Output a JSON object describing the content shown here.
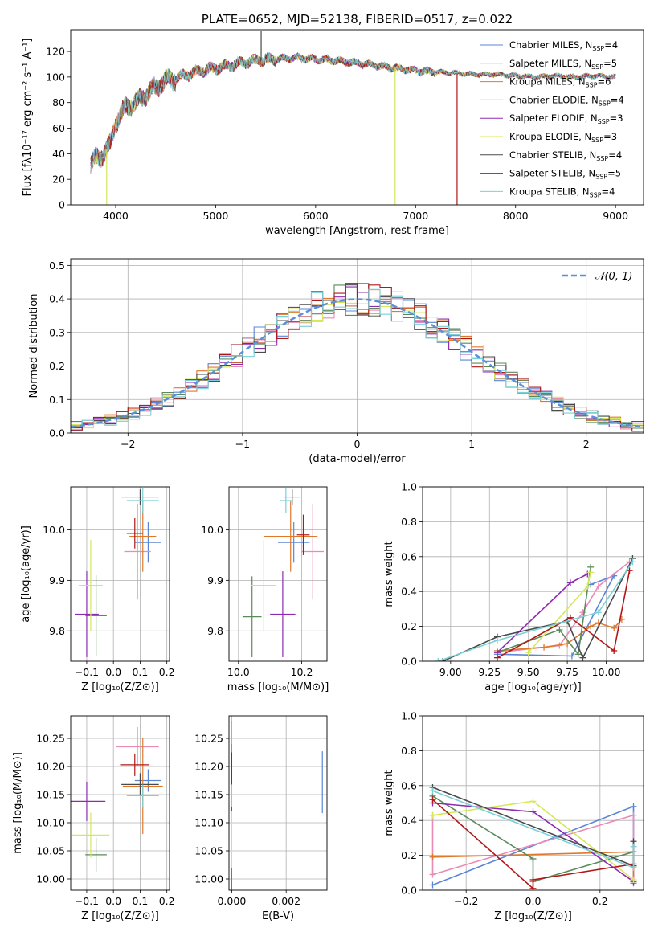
{
  "colors": {
    "Chabrier MILES": "#5b86d6",
    "Salpeter MILES": "#ea8bb4",
    "Kroupa MILES": "#e0782c",
    "Chabrier ELODIE": "#5a8a5a",
    "Salpeter ELODIE": "#8e2ab0",
    "Kroupa ELODIE": "#d4e85a",
    "Chabrier STELIB": "#4a4a4a",
    "Salpeter STELIB": "#b01818",
    "Kroupa STELIB": "#7ad0d8",
    "gaussian": "#5b90d8",
    "grid": "#b0b0b0"
  },
  "chart_data": [
    {
      "id": "spectrum",
      "type": "line",
      "title": "PLATE=0652, MJD=52138, FIBERID=0517, z=0.022",
      "xlabel": "wavelength [Angstrom, rest frame]",
      "ylabel": "Flux [fλ10⁻¹⁷ erg cm⁻² s⁻¹ A⁻¹]",
      "xlim": [
        3550,
        9280
      ],
      "ylim": [
        0,
        137
      ],
      "xticks": [
        4000,
        5000,
        6000,
        7000,
        8000,
        9000
      ],
      "yticks": [
        0,
        20,
        40,
        60,
        80,
        100,
        120
      ],
      "grid": false,
      "legend_position": "top-right",
      "continuum": {
        "x": [
          3750,
          3800,
          3850,
          3900,
          3950,
          4000,
          4100,
          4200,
          4300,
          4400,
          4500,
          4600,
          4800,
          5000,
          5200,
          5400,
          5600,
          5800,
          6000,
          6200,
          6400,
          6600,
          6800,
          7000,
          7200,
          7400,
          7600,
          7800,
          8000,
          8200,
          8400,
          8600,
          8800,
          9000
        ],
        "y": [
          32,
          36,
          38,
          42,
          48,
          65,
          76,
          80,
          86,
          92,
          97,
          99,
          104,
          107,
          110,
          113,
          114,
          115,
          114,
          113,
          111,
          109,
          107,
          105,
          104,
          103,
          102,
          102,
          101,
          100,
          101,
          100,
          101,
          100
        ]
      },
      "dropouts": [
        {
          "series": "Kroupa ELODIE",
          "x": [
            3890,
            3930
          ],
          "y": 0
        },
        {
          "series": "Kroupa ELODIE",
          "x": [
            6790,
            6800
          ],
          "y": 0
        },
        {
          "series": "Salpeter STELIB",
          "x": [
            7410,
            7420
          ],
          "y": 0
        },
        {
          "series": "Chabrier STELIB",
          "x": [
            5450,
            5460
          ],
          "y": 136
        }
      ],
      "legend": [
        {
          "series": "Chabrier MILES",
          "label": "Chabrier MILES, N",
          "sub": "SSP",
          "tail": "=4"
        },
        {
          "series": "Salpeter MILES",
          "label": "Salpeter MILES, N",
          "sub": "SSP",
          "tail": "=5"
        },
        {
          "series": "Kroupa MILES",
          "label": "Kroupa MILES, N",
          "sub": "SSP",
          "tail": "=6"
        },
        {
          "series": "Chabrier ELODIE",
          "label": "Chabrier ELODIE, N",
          "sub": "SSP",
          "tail": "=4"
        },
        {
          "series": "Salpeter ELODIE",
          "label": "Salpeter ELODIE, N",
          "sub": "SSP",
          "tail": "=3"
        },
        {
          "series": "Kroupa ELODIE",
          "label": "Kroupa ELODIE, N",
          "sub": "SSP",
          "tail": "=3"
        },
        {
          "series": "Chabrier STELIB",
          "label": "Chabrier STELIB, N",
          "sub": "SSP",
          "tail": "=4"
        },
        {
          "series": "Salpeter STELIB",
          "label": "Salpeter STELIB, N",
          "sub": "SSP",
          "tail": "=5"
        },
        {
          "series": "Kroupa STELIB",
          "label": "Kroupa STELIB, N",
          "sub": "SSP",
          "tail": "=4"
        }
      ]
    },
    {
      "id": "residuals",
      "type": "line",
      "xlabel": "(data-model)/error",
      "ylabel": "Normed distribution",
      "xlim": [
        -2.5,
        2.5
      ],
      "ylim": [
        0,
        0.52
      ],
      "xticks": [
        -2,
        -1,
        0,
        1,
        2
      ],
      "yticks": [
        0.0,
        0.1,
        0.2,
        0.3,
        0.4,
        0.5
      ],
      "grid": true,
      "bins": {
        "start": -2.5,
        "width": 0.1,
        "count": 50
      },
      "legend": [
        {
          "label": "𝒩(0, 1)",
          "style": "dashed"
        }
      ],
      "legend_position": "top-right"
    },
    {
      "id": "age_vs_Z",
      "type": "scatter",
      "xlabel": "Z [log₁₀(Z/Z⊙)]",
      "ylabel": "age  [log₁₀(age/yr)]",
      "xlim": [
        -0.16,
        0.21
      ],
      "ylim": [
        9.74,
        10.085
      ],
      "xticks": [
        -0.1,
        0.0,
        0.1,
        0.2
      ],
      "yticks": [
        9.8,
        9.9,
        10.0
      ],
      "grid": true,
      "points": [
        {
          "series": "Chabrier MILES",
          "x": 0.13,
          "y": 9.975,
          "xerr": 0.05,
          "yerr": 0.04
        },
        {
          "series": "Salpeter MILES",
          "x": 0.09,
          "y": 9.957,
          "xerr": 0.05,
          "yerr": 0.095
        },
        {
          "series": "Kroupa MILES",
          "x": 0.11,
          "y": 9.987,
          "xerr": 0.05,
          "yerr": 0.07
        },
        {
          "series": "Chabrier ELODIE",
          "x": -0.065,
          "y": 9.83,
          "xerr": 0.04,
          "yerr": 0.08
        },
        {
          "series": "Salpeter ELODIE",
          "x": -0.1,
          "y": 9.833,
          "xerr": 0.045,
          "yerr": 0.085
        },
        {
          "series": "Kroupa ELODIE",
          "x": -0.085,
          "y": 9.89,
          "xerr": 0.045,
          "yerr": 0.09
        },
        {
          "series": "Chabrier STELIB",
          "x": 0.1,
          "y": 10.065,
          "xerr": 0.07,
          "yerr": 0.015
        },
        {
          "series": "Salpeter STELIB",
          "x": 0.08,
          "y": 9.993,
          "xerr": 0.03,
          "yerr": 0.03
        },
        {
          "series": "Kroupa STELIB",
          "x": 0.11,
          "y": 10.058,
          "xerr": 0.06,
          "yerr": 0.025
        }
      ]
    },
    {
      "id": "age_vs_mass",
      "type": "scatter",
      "xlabel": "mass [log₁₀(M/M⊙)]",
      "ylabel": "",
      "xlim": [
        9.97,
        10.28
      ],
      "ylim": [
        9.74,
        10.085
      ],
      "xticks": [
        10.0,
        10.2
      ],
      "yticks": [
        9.8,
        9.9,
        10.0
      ],
      "grid": true,
      "points": [
        {
          "series": "Chabrier MILES",
          "x": 10.175,
          "y": 9.975,
          "xerr": 0.05,
          "yerr": 0.04
        },
        {
          "series": "Salpeter MILES",
          "x": 10.235,
          "y": 9.957,
          "xerr": 0.035,
          "yerr": 0.095
        },
        {
          "series": "Kroupa MILES",
          "x": 10.165,
          "y": 9.987,
          "xerr": 0.085,
          "yerr": 0.07
        },
        {
          "series": "Chabrier ELODIE",
          "x": 10.043,
          "y": 9.828,
          "xerr": 0.03,
          "yerr": 0.08
        },
        {
          "series": "Salpeter ELODIE",
          "x": 10.14,
          "y": 9.833,
          "xerr": 0.04,
          "yerr": 0.085
        },
        {
          "series": "Kroupa ELODIE",
          "x": 10.08,
          "y": 9.89,
          "xerr": 0.04,
          "yerr": 0.09
        },
        {
          "series": "Chabrier STELIB",
          "x": 10.17,
          "y": 10.065,
          "xerr": 0.025,
          "yerr": 0.015
        },
        {
          "series": "Salpeter STELIB",
          "x": 10.205,
          "y": 9.99,
          "xerr": 0.02,
          "yerr": 0.04
        },
        {
          "series": "Kroupa STELIB",
          "x": 10.15,
          "y": 10.058,
          "xerr": 0.02,
          "yerr": 0.025
        }
      ]
    },
    {
      "id": "mass_weight_vs_age",
      "type": "line",
      "xlabel": "age  [log₁₀(age/yr)]",
      "ylabel": "mass weight",
      "xlim": [
        8.82,
        10.24
      ],
      "ylim": [
        0,
        1.0
      ],
      "xticks": [
        9.0,
        9.25,
        9.5,
        9.75,
        10.0
      ],
      "yticks": [
        0.0,
        0.2,
        0.4,
        0.6,
        0.8,
        1.0
      ],
      "grid": true,
      "series": [
        {
          "name": "Chabrier MILES",
          "x": [
            9.3,
            9.78,
            10.05,
            9.9
          ],
          "y": [
            0.04,
            0.03,
            0.49,
            0.44
          ]
        },
        {
          "name": "Salpeter MILES",
          "x": [
            9.3,
            9.7,
            9.85,
            9.95,
            10.15
          ],
          "y": [
            0.05,
            0.09,
            0.28,
            0.43,
            0.57
          ]
        },
        {
          "name": "Kroupa MILES",
          "x": [
            9.3,
            9.6,
            9.75,
            9.9,
            9.95,
            10.05,
            10.1
          ],
          "y": [
            0.06,
            0.08,
            0.1,
            0.2,
            0.22,
            0.19,
            0.24
          ]
        },
        {
          "name": "Chabrier ELODIE",
          "x": [
            9.3,
            9.7,
            9.82,
            9.9
          ],
          "y": [
            0.05,
            0.18,
            0.04,
            0.54
          ]
        },
        {
          "name": "Salpeter ELODIE",
          "x": [
            9.3,
            9.77,
            9.88
          ],
          "y": [
            0.05,
            0.45,
            0.5
          ]
        },
        {
          "name": "Kroupa ELODIE",
          "x": [
            9.5,
            9.88,
            9.9
          ],
          "y": [
            0.05,
            0.43,
            0.51
          ]
        },
        {
          "name": "Chabrier STELIB",
          "x": [
            8.95,
            9.3,
            9.75,
            9.85,
            10.17
          ],
          "y": [
            0.0,
            0.14,
            0.23,
            0.02,
            0.59
          ]
        },
        {
          "name": "Salpeter STELIB",
          "x": [
            9.3,
            9.77,
            10.05,
            10.15
          ],
          "y": [
            0.02,
            0.25,
            0.06,
            0.52
          ]
        },
        {
          "name": "Kroupa STELIB",
          "x": [
            8.92,
            9.3,
            9.95,
            10.17
          ],
          "y": [
            0.0,
            0.12,
            0.28,
            0.57
          ]
        }
      ]
    },
    {
      "id": "mass_vs_Z",
      "type": "scatter",
      "xlabel": "Z [log₁₀(Z/Z⊙)]",
      "ylabel": "mass [log₁₀(M/M⊙)]",
      "xlim": [
        -0.16,
        0.21
      ],
      "ylim": [
        9.98,
        10.29
      ],
      "xticks": [
        -0.1,
        0.0,
        0.1,
        0.2
      ],
      "yticks": [
        10.0,
        10.05,
        10.1,
        10.15,
        10.2,
        10.25
      ],
      "grid": true,
      "points": [
        {
          "series": "Chabrier MILES",
          "x": 0.13,
          "y": 10.175,
          "xerr": 0.05,
          "yerr": 0.02
        },
        {
          "series": "Salpeter MILES",
          "x": 0.09,
          "y": 10.235,
          "xerr": 0.08,
          "yerr": 0.035
        },
        {
          "series": "Kroupa MILES",
          "x": 0.11,
          "y": 10.165,
          "xerr": 0.075,
          "yerr": 0.085
        },
        {
          "series": "Chabrier ELODIE",
          "x": -0.065,
          "y": 10.043,
          "xerr": 0.04,
          "yerr": 0.03
        },
        {
          "series": "Salpeter ELODIE",
          "x": -0.1,
          "y": 10.138,
          "xerr": 0.07,
          "yerr": 0.035
        },
        {
          "series": "Kroupa ELODIE",
          "x": -0.085,
          "y": 10.078,
          "xerr": 0.07,
          "yerr": 0.04
        },
        {
          "series": "Chabrier STELIB",
          "x": 0.1,
          "y": 10.168,
          "xerr": 0.07,
          "yerr": 0.02
        },
        {
          "series": "Salpeter STELIB",
          "x": 0.08,
          "y": 10.203,
          "xerr": 0.055,
          "yerr": 0.02
        },
        {
          "series": "Kroupa STELIB",
          "x": 0.11,
          "y": 10.148,
          "xerr": 0.06,
          "yerr": 0.02
        }
      ]
    },
    {
      "id": "mass_vs_EBV",
      "type": "scatter",
      "xlabel": "E(B-V)",
      "ylabel": "",
      "xlim": [
        -0.0001,
        0.0035
      ],
      "ylim": [
        9.98,
        10.29
      ],
      "xticks": [
        0.0,
        0.002
      ],
      "yticks": [
        10.0,
        10.05,
        10.1,
        10.15,
        10.2,
        10.25
      ],
      "grid": true,
      "points": [
        {
          "series": "Chabrier MILES",
          "x": 0.00333,
          "y": 10.172,
          "xerr": 0.0,
          "yerr": 0.055
        },
        {
          "series": "Salpeter MILES",
          "x": 0.0,
          "y": 10.24,
          "xerr": 0.0,
          "yerr": 0.04
        },
        {
          "series": "Kroupa MILES",
          "x": 0.0,
          "y": 10.16,
          "xerr": 0.0,
          "yerr": 0.08
        },
        {
          "series": "Chabrier ELODIE",
          "x": 0.0,
          "y": 10.0,
          "xerr": 0.0,
          "yerr": 0.04
        },
        {
          "series": "Salpeter ELODIE",
          "x": 0.0,
          "y": 10.14,
          "xerr": 0.0,
          "yerr": 0.035
        },
        {
          "series": "Kroupa ELODIE",
          "x": 0.0,
          "y": 10.07,
          "xerr": 0.0,
          "yerr": 0.05
        },
        {
          "series": "Chabrier STELIB",
          "x": 0.0,
          "y": 10.168,
          "xerr": 0.0,
          "yerr": 0.02
        },
        {
          "series": "Salpeter STELIB",
          "x": 0.0,
          "y": 10.195,
          "xerr": 0.0,
          "yerr": 0.03
        },
        {
          "series": "Kroupa STELIB",
          "x": 0.0,
          "y": 10.148,
          "xerr": 0.0,
          "yerr": 0.02
        }
      ]
    },
    {
      "id": "mass_weight_vs_Z",
      "type": "line",
      "xlabel": "Z [log₁₀(Z/Z⊙)]",
      "ylabel": "mass weight",
      "xlim": [
        -0.33,
        0.33
      ],
      "ylim": [
        0,
        1.0
      ],
      "xticks": [
        -0.2,
        0.0,
        0.2
      ],
      "yticks": [
        0.0,
        0.2,
        0.4,
        0.6,
        0.8,
        1.0
      ],
      "grid": true,
      "series": [
        {
          "name": "Chabrier MILES",
          "x": [
            -0.3,
            0.3,
            0.3
          ],
          "y": [
            0.03,
            0.48,
            0.04
          ]
        },
        {
          "name": "Salpeter MILES",
          "x": [
            -0.3,
            -0.3,
            0.3,
            0.3
          ],
          "y": [
            0.43,
            0.09,
            0.43,
            0.05
          ]
        },
        {
          "name": "Kroupa MILES",
          "x": [
            -0.3,
            0.3,
            0.3
          ],
          "y": [
            0.19,
            0.22,
            0.05
          ]
        },
        {
          "name": "Chabrier ELODIE",
          "x": [
            -0.3,
            0.0,
            0.0,
            0.3
          ],
          "y": [
            0.54,
            0.18,
            0.05,
            0.22
          ]
        },
        {
          "name": "Salpeter ELODIE",
          "x": [
            -0.3,
            0.0,
            0.3
          ],
          "y": [
            0.5,
            0.45,
            0.05
          ]
        },
        {
          "name": "Kroupa ELODIE",
          "x": [
            -0.3,
            0.0,
            0.3
          ],
          "y": [
            0.43,
            0.51,
            0.06
          ]
        },
        {
          "name": "Chabrier STELIB",
          "x": [
            -0.3,
            0.3,
            0.3
          ],
          "y": [
            0.59,
            0.14,
            0.28
          ]
        },
        {
          "name": "Salpeter STELIB",
          "x": [
            -0.3,
            0.0,
            0.0,
            0.3
          ],
          "y": [
            0.52,
            0.01,
            0.06,
            0.15
          ]
        },
        {
          "name": "Kroupa STELIB",
          "x": [
            -0.3,
            0.3,
            0.3
          ],
          "y": [
            0.57,
            0.13,
            0.25
          ]
        }
      ]
    }
  ]
}
